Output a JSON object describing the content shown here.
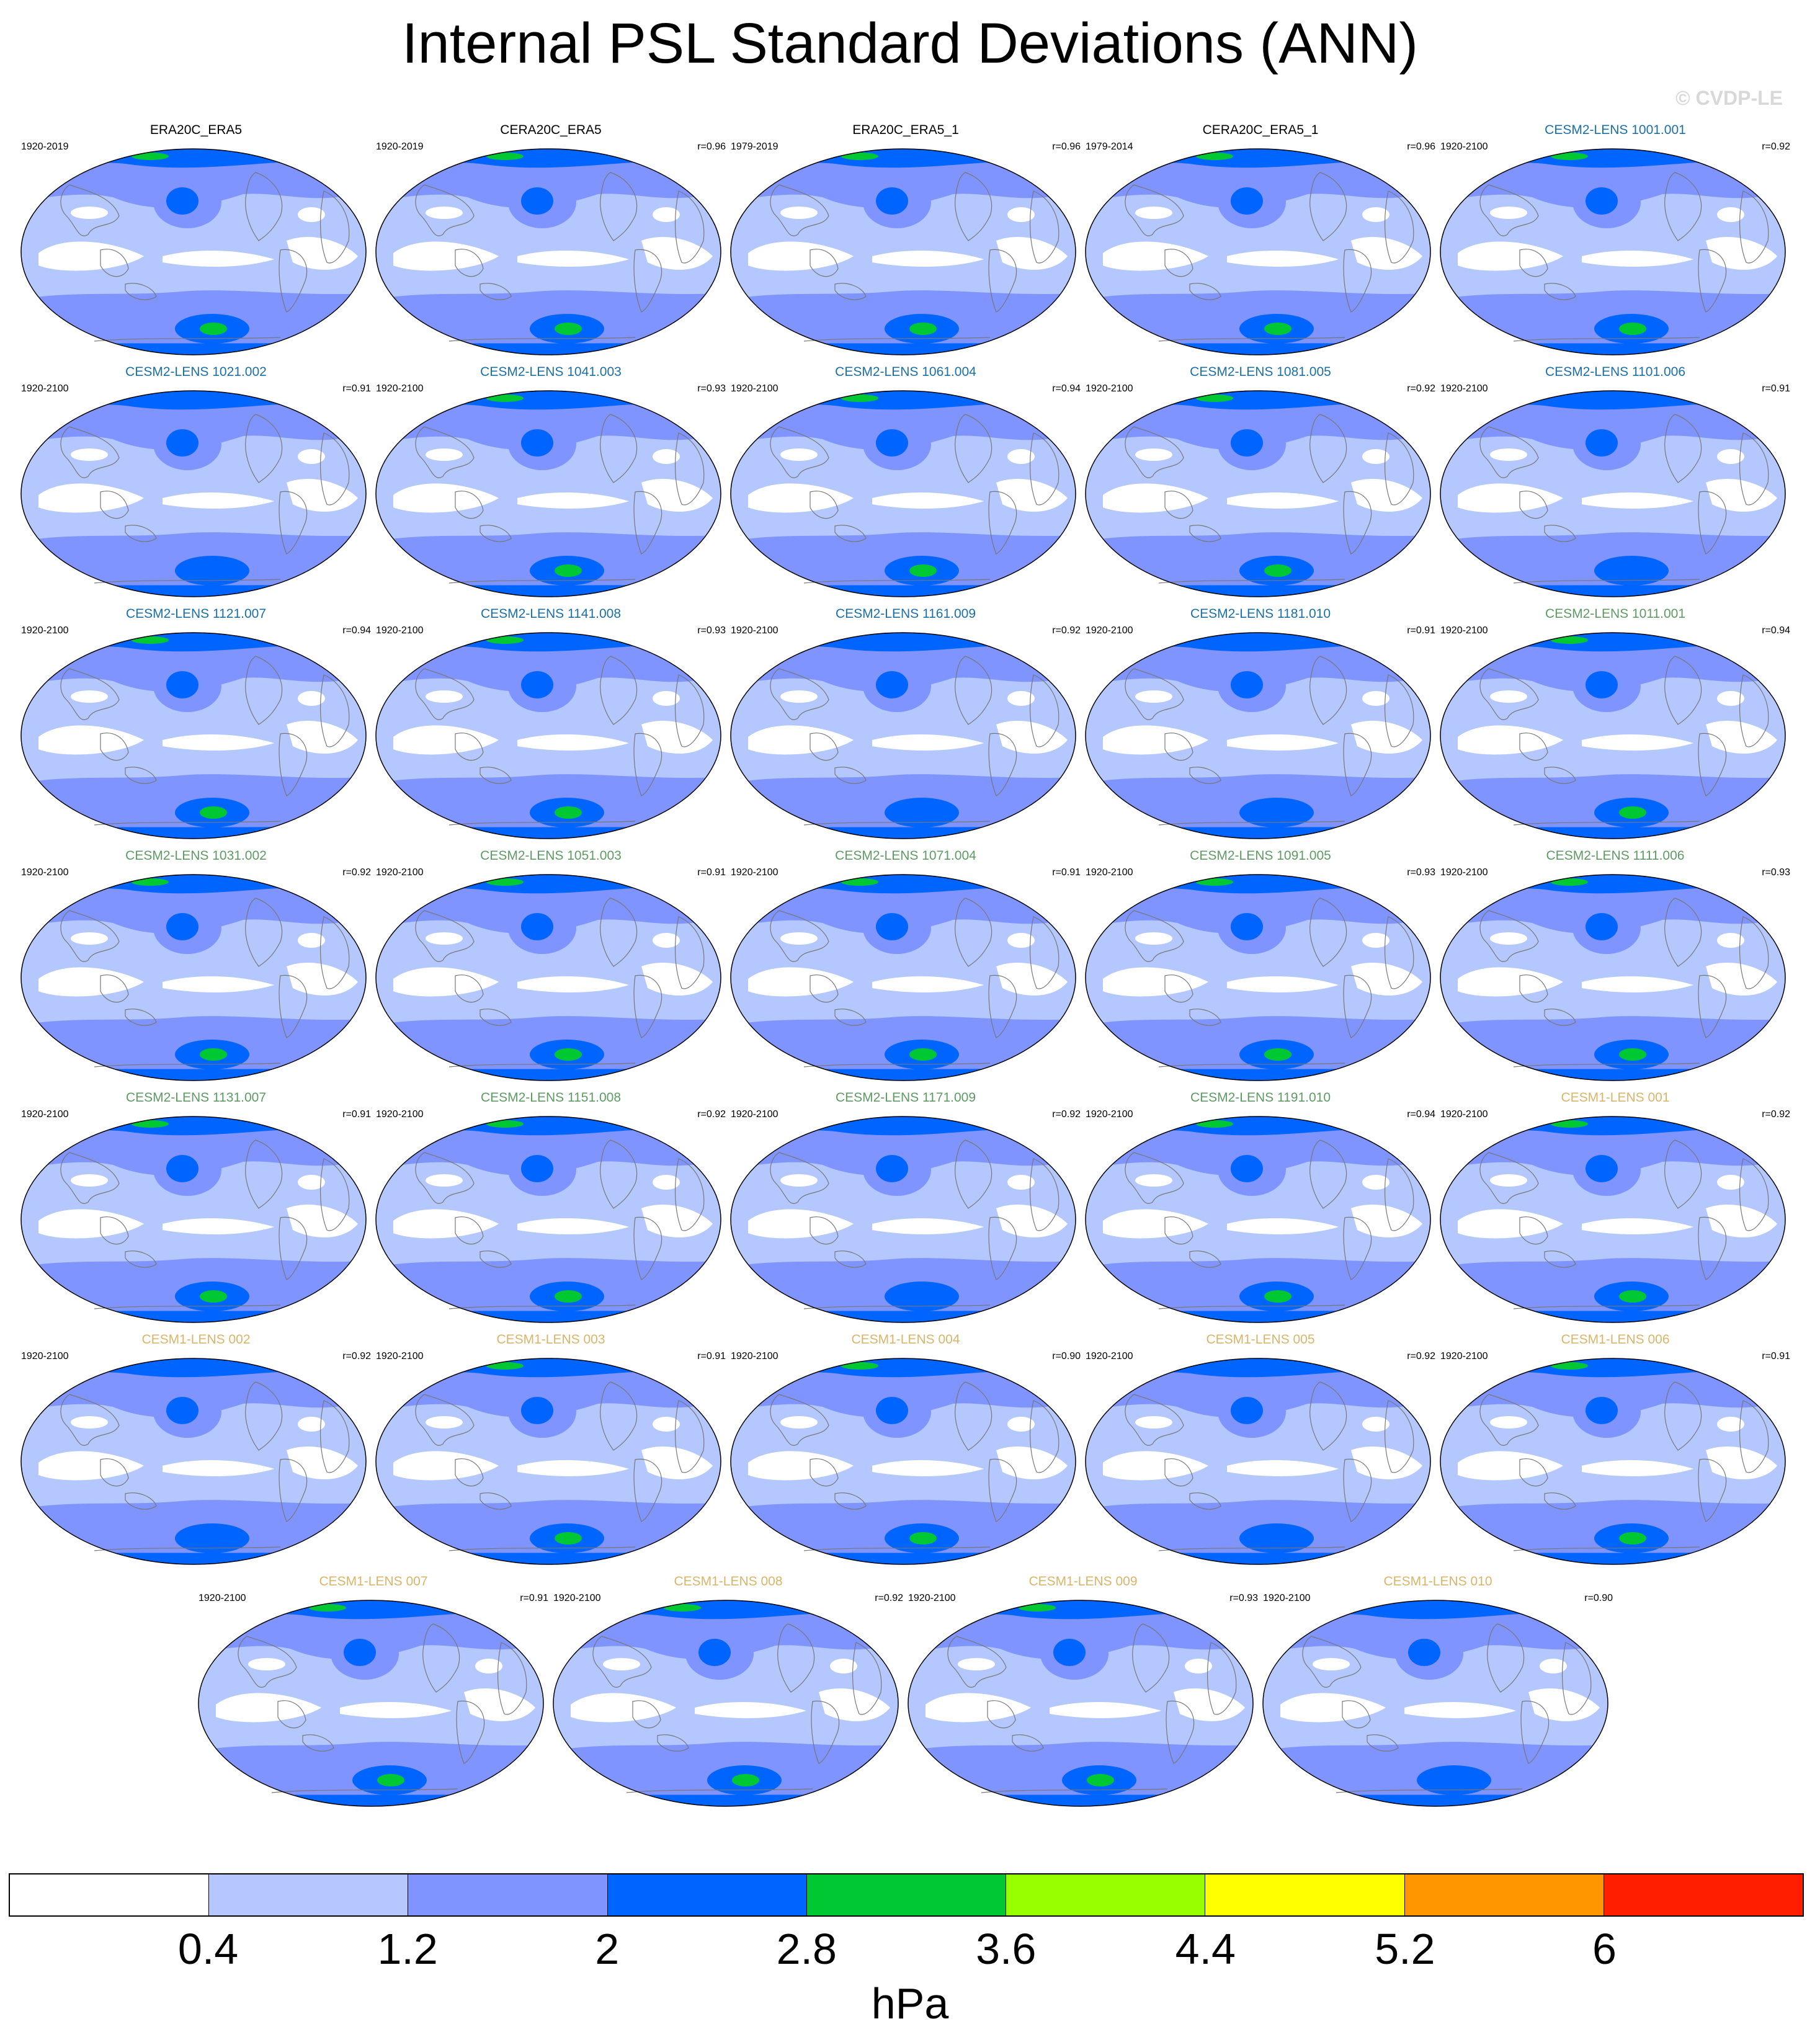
{
  "figure": {
    "title": "Internal PSL Standard Deviations (ANN)",
    "copyright": "© CVDP-LE",
    "colorbar": {
      "colors": [
        "#ffffff",
        "#b4c8ff",
        "#7f94ff",
        "#0064ff",
        "#00c832",
        "#96ff00",
        "#ffff00",
        "#ff9600",
        "#ff1e00"
      ],
      "ticks": [
        "0.4",
        "1.2",
        "2",
        "2.8",
        "3.6",
        "4.4",
        "5.2",
        "6"
      ],
      "units": "hPa"
    },
    "title_colors": {
      "obs": "#000000",
      "cesm2a": "#1b6fa8",
      "cesm2b": "#5e9a63",
      "cesm1": "#d9b56a"
    }
  },
  "panels": [
    {
      "title": "ERA20C_ERA5",
      "years": "1920-2019",
      "r": "",
      "group": "obs",
      "max_level": 4
    },
    {
      "title": "CERA20C_ERA5",
      "years": "1920-2019",
      "r": "r=0.96",
      "group": "obs",
      "max_level": 4
    },
    {
      "title": "ERA20C_ERA5_1",
      "years": "1979-2019",
      "r": "r=0.96",
      "group": "obs",
      "max_level": 4
    },
    {
      "title": "CERA20C_ERA5_1",
      "years": "1979-2014",
      "r": "r=0.96",
      "group": "obs",
      "max_level": 4
    },
    {
      "title": "CESM2-LENS 1001.001",
      "years": "1920-2100",
      "r": "r=0.92",
      "group": "cesm2a",
      "max_level": 4
    },
    {
      "title": "CESM2-LENS 1021.002",
      "years": "1920-2100",
      "r": "r=0.91",
      "group": "cesm2a",
      "max_level": 3
    },
    {
      "title": "CESM2-LENS 1041.003",
      "years": "1920-2100",
      "r": "r=0.93",
      "group": "cesm2a",
      "max_level": 4
    },
    {
      "title": "CESM2-LENS 1061.004",
      "years": "1920-2100",
      "r": "r=0.94",
      "group": "cesm2a",
      "max_level": 4
    },
    {
      "title": "CESM2-LENS 1081.005",
      "years": "1920-2100",
      "r": "r=0.92",
      "group": "cesm2a",
      "max_level": 4
    },
    {
      "title": "CESM2-LENS 1101.006",
      "years": "1920-2100",
      "r": "r=0.91",
      "group": "cesm2a",
      "max_level": 3
    },
    {
      "title": "CESM2-LENS 1121.007",
      "years": "1920-2100",
      "r": "r=0.94",
      "group": "cesm2a",
      "max_level": 4
    },
    {
      "title": "CESM2-LENS 1141.008",
      "years": "1920-2100",
      "r": "r=0.93",
      "group": "cesm2a",
      "max_level": 4
    },
    {
      "title": "CESM2-LENS 1161.009",
      "years": "1920-2100",
      "r": "r=0.92",
      "group": "cesm2a",
      "max_level": 3
    },
    {
      "title": "CESM2-LENS 1181.010",
      "years": "1920-2100",
      "r": "r=0.91",
      "group": "cesm2a",
      "max_level": 3
    },
    {
      "title": "CESM2-LENS 1011.001",
      "years": "1920-2100",
      "r": "r=0.94",
      "group": "cesm2b",
      "max_level": 4
    },
    {
      "title": "CESM2-LENS 1031.002",
      "years": "1920-2100",
      "r": "r=0.92",
      "group": "cesm2b",
      "max_level": 4
    },
    {
      "title": "CESM2-LENS 1051.003",
      "years": "1920-2100",
      "r": "r=0.91",
      "group": "cesm2b",
      "max_level": 4
    },
    {
      "title": "CESM2-LENS 1071.004",
      "years": "1920-2100",
      "r": "r=0.91",
      "group": "cesm2b",
      "max_level": 4
    },
    {
      "title": "CESM2-LENS 1091.005",
      "years": "1920-2100",
      "r": "r=0.93",
      "group": "cesm2b",
      "max_level": 4
    },
    {
      "title": "CESM2-LENS 1111.006",
      "years": "1920-2100",
      "r": "r=0.93",
      "group": "cesm2b",
      "max_level": 4
    },
    {
      "title": "CESM2-LENS 1131.007",
      "years": "1920-2100",
      "r": "r=0.91",
      "group": "cesm2b",
      "max_level": 4
    },
    {
      "title": "CESM2-LENS 1151.008",
      "years": "1920-2100",
      "r": "r=0.92",
      "group": "cesm2b",
      "max_level": 4
    },
    {
      "title": "CESM2-LENS 1171.009",
      "years": "1920-2100",
      "r": "r=0.92",
      "group": "cesm2b",
      "max_level": 3
    },
    {
      "title": "CESM2-LENS 1191.010",
      "years": "1920-2100",
      "r": "r=0.94",
      "group": "cesm2b",
      "max_level": 4
    },
    {
      "title": "CESM1-LENS 001",
      "years": "1920-2100",
      "r": "r=0.92",
      "group": "cesm1",
      "max_level": 4
    },
    {
      "title": "CESM1-LENS 002",
      "years": "1920-2100",
      "r": "r=0.92",
      "group": "cesm1",
      "max_level": 3
    },
    {
      "title": "CESM1-LENS 003",
      "years": "1920-2100",
      "r": "r=0.91",
      "group": "cesm1",
      "max_level": 4
    },
    {
      "title": "CESM1-LENS 004",
      "years": "1920-2100",
      "r": "r=0.90",
      "group": "cesm1",
      "max_level": 4
    },
    {
      "title": "CESM1-LENS 005",
      "years": "1920-2100",
      "r": "r=0.92",
      "group": "cesm1",
      "max_level": 3
    },
    {
      "title": "CESM1-LENS 006",
      "years": "1920-2100",
      "r": "r=0.91",
      "group": "cesm1",
      "max_level": 4
    },
    {
      "title": "CESM1-LENS 007",
      "years": "1920-2100",
      "r": "r=0.91",
      "group": "cesm1",
      "max_level": 4
    },
    {
      "title": "CESM1-LENS 008",
      "years": "1920-2100",
      "r": "r=0.92",
      "group": "cesm1",
      "max_level": 4
    },
    {
      "title": "CESM1-LENS 009",
      "years": "1920-2100",
      "r": "r=0.93",
      "group": "cesm1",
      "max_level": 4
    },
    {
      "title": "CESM1-LENS 010",
      "years": "1920-2100",
      "r": "r=0.90",
      "group": "cesm1",
      "max_level": 3
    }
  ]
}
